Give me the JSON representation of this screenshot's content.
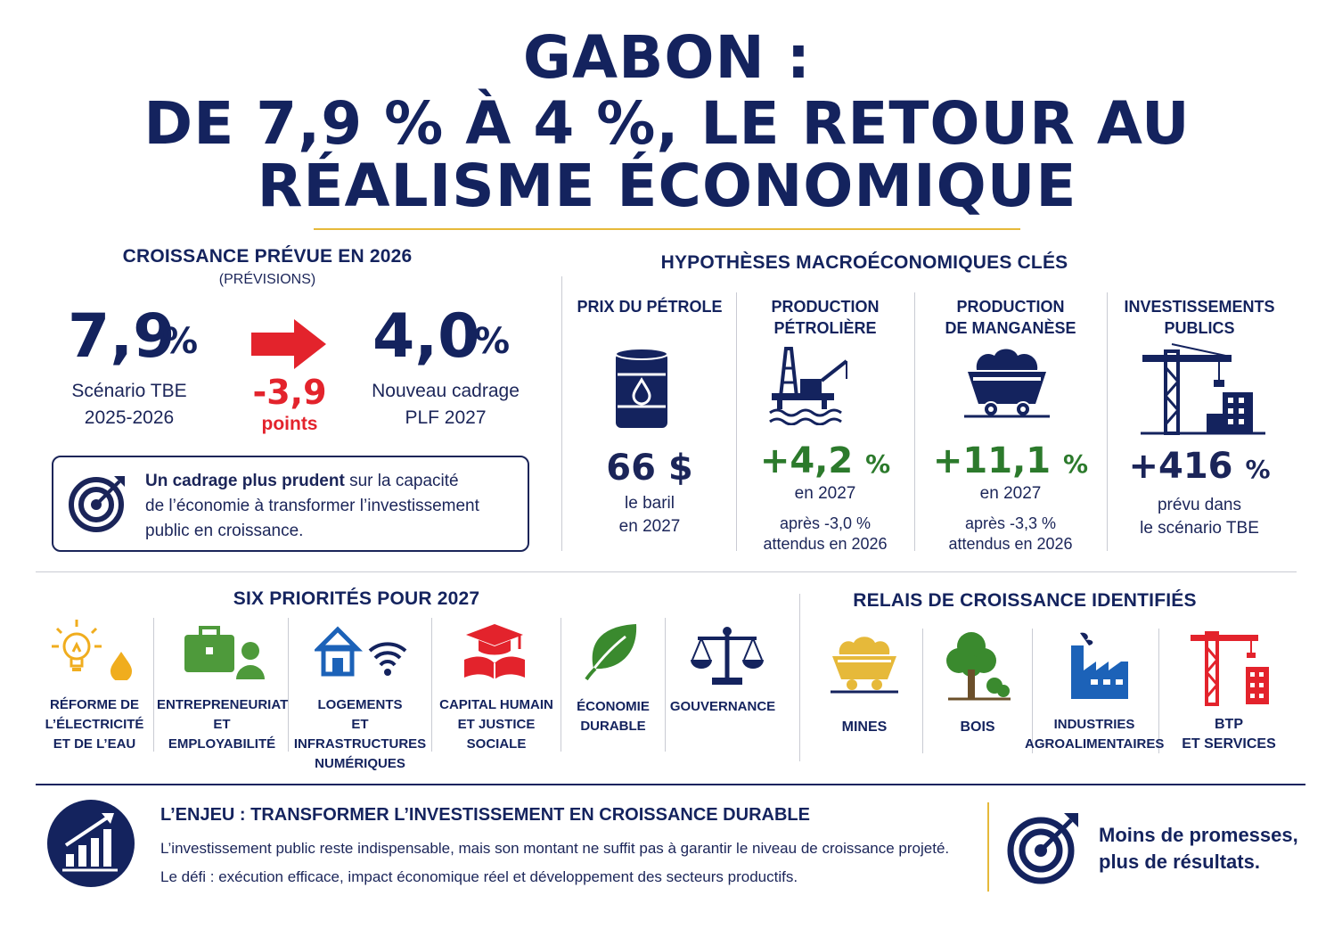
{
  "title": {
    "line1": "GABON :",
    "line2": "DE 7,9 % À 4 %, LE RETOUR AU",
    "line3": "RÉALISME ÉCONOMIQUE"
  },
  "growth": {
    "heading": "CROISSANCE PRÉVUE EN 2026",
    "subheading": "(PRÉVISIONS)",
    "old_value": "7,9",
    "old_unit": "%",
    "old_label1": "Scénario TBE",
    "old_label2": "2025-2026",
    "delta_value": "-3,9",
    "delta_unit": "points",
    "new_value": "4,0",
    "new_unit": "%",
    "new_label1": "Nouveau cadrage",
    "new_label2": "PLF 2027",
    "box_bold": "Un cadrage plus prudent",
    "box_rest1": " sur la capacité",
    "box_line2": "de l’économie à transformer l’investissement",
    "box_line3": "public en croissance."
  },
  "hypotheses": {
    "heading": "HYPOTHÈSES MACROÉCONOMIQUES CLÉS",
    "cols": [
      {
        "title1": "PRIX DU PÉTROLE",
        "title2": "",
        "value": "66 $",
        "unit": "",
        "txt1": "le baril",
        "txt2": "en 2027",
        "note1": "",
        "note2": "",
        "icon": "oil-barrel-icon"
      },
      {
        "title1": "PRODUCTION",
        "title2": "PÉTROLIÈRE",
        "value": "+4,2",
        "unit": "%",
        "txt1": "en 2027",
        "txt2": "",
        "note1": "après -3,0 %",
        "note2": "attendus en 2026",
        "icon": "oil-rig-icon"
      },
      {
        "title1": "PRODUCTION",
        "title2": "DE MANGANÈSE",
        "value": "+11,1",
        "unit": "%",
        "txt1": "en 2027",
        "txt2": "",
        "note1": "après -3,3 %",
        "note2": "attendus en 2026",
        "icon": "mine-cart-icon"
      },
      {
        "title1": "INVESTISSEMENTS",
        "title2": "PUBLICS",
        "value": "+416",
        "unit": "%",
        "txt1": "prévu dans",
        "txt2": "le scénario TBE",
        "note1": "",
        "note2": "",
        "icon": "crane-icon"
      }
    ]
  },
  "priorities": {
    "heading": "SIX PRIORITÉS POUR 2027",
    "items": [
      {
        "l1": "RÉFORME DE",
        "l2": "L’ÉLECTRICITÉ",
        "l3": "ET DE L’EAU",
        "icon": "bulb-drop-icon"
      },
      {
        "l1": "ENTREPRENEURIAT",
        "l2": "ET",
        "l3": "EMPLOYABILITÉ",
        "icon": "briefcase-person-icon"
      },
      {
        "l1": "LOGEMENTS",
        "l2": "ET INFRASTRUCTURES",
        "l3": "NUMÉRIQUES",
        "icon": "house-wifi-icon"
      },
      {
        "l1": "CAPITAL HUMAIN",
        "l2": "ET JUSTICE",
        "l3": "SOCIALE",
        "icon": "graduation-book-icon"
      },
      {
        "l1": "ÉCONOMIE",
        "l2": "DURABLE",
        "l3": "",
        "icon": "leaf-icon"
      },
      {
        "l1": "GOUVERNANCE",
        "l2": "",
        "l3": "",
        "icon": "scales-icon"
      }
    ]
  },
  "relays": {
    "heading": "RELAIS DE CROISSANCE IDENTIFIÉS",
    "items": [
      {
        "l1": "MINES",
        "l2": "",
        "icon": "mine-cart-yellow-icon"
      },
      {
        "l1": "BOIS",
        "l2": "",
        "icon": "tree-icon"
      },
      {
        "l1": "INDUSTRIES",
        "l2": "AGROALIMENTAIRES",
        "icon": "factory-icon"
      },
      {
        "l1": "BTP",
        "l2": "ET SERVICES",
        "icon": "red-crane-icon"
      }
    ]
  },
  "stake": {
    "title": "L’ENJEU :  TRANSFORMER L’INVESTISSEMENT EN CROISSANCE DURABLE",
    "line1": "L’investissement public reste indispensable, mais son montant ne suffit pas à garantir le niveau de croissance projeté.",
    "line2": "Le défi : exécution efficace, impact économique réel et développement des secteurs productifs.",
    "quote1": "Moins de promesses,",
    "quote2": "plus de résultats."
  },
  "colors": {
    "navy": "#14235e",
    "red": "#e3232c",
    "green": "#2c7a2c",
    "gold": "#e6b93a"
  }
}
